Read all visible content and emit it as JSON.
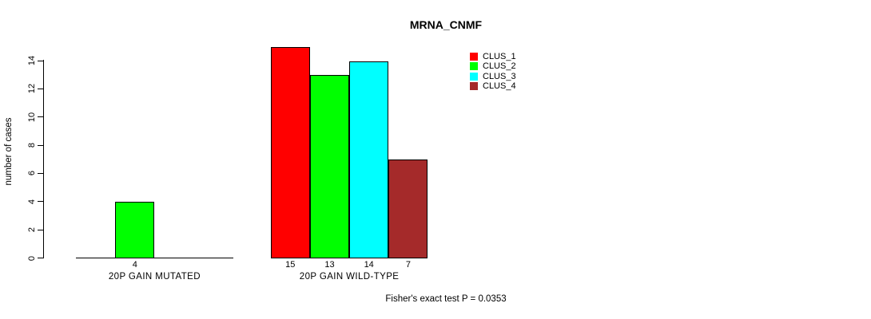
{
  "chart_data": {
    "type": "bar",
    "title": "MRNA_CNMF",
    "ylabel": "number of cases",
    "xlabel": "",
    "ylim": [
      0,
      14
    ],
    "yticks": [
      0,
      2,
      4,
      6,
      8,
      10,
      12,
      14
    ],
    "grid": false,
    "legend_position": "top-right",
    "series": [
      {
        "name": "CLUS_1",
        "color": "#ff0000"
      },
      {
        "name": "CLUS_2",
        "color": "#00ff00"
      },
      {
        "name": "CLUS_3",
        "color": "#00ffff"
      },
      {
        "name": "CLUS_4",
        "color": "#a52a2a"
      }
    ],
    "groups": [
      {
        "label": "20P GAIN MUTATED",
        "values": [
          0,
          4,
          0,
          0
        ],
        "value_labels": [
          "",
          "4",
          "",
          ""
        ]
      },
      {
        "label": "20P GAIN WILD-TYPE",
        "values": [
          15,
          13,
          14,
          7
        ],
        "value_labels": [
          "15",
          "13",
          "14",
          "7"
        ]
      }
    ],
    "footnote": "Fisher's exact test P = 0.0353",
    "text_color": "#000000",
    "axis_color": "#000000",
    "background_color": "#ffffff"
  }
}
